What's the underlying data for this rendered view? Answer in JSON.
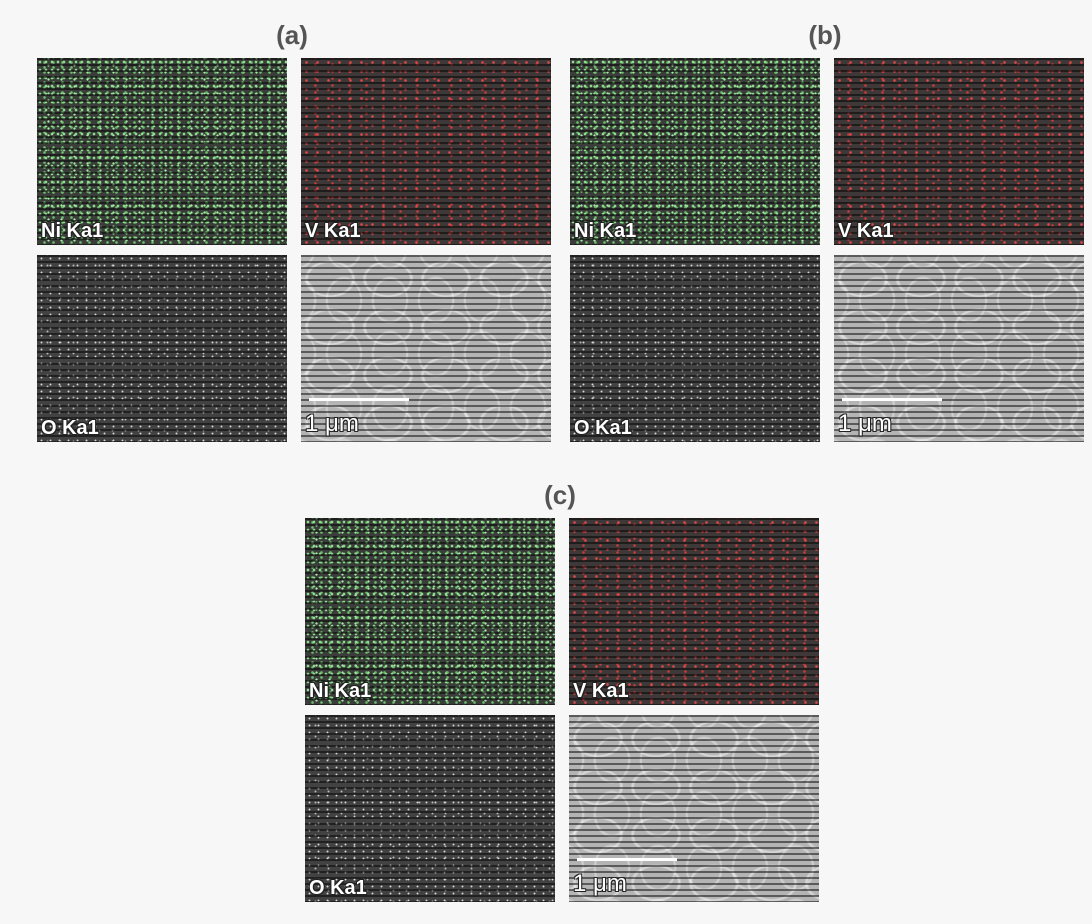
{
  "panels": [
    {
      "label": "(a)",
      "tiles": [
        {
          "label": "Ni Ka1"
        },
        {
          "label": "V Ka1"
        },
        {
          "label": "O Ka1"
        },
        {
          "label": "1 μm"
        }
      ]
    },
    {
      "label": "(b)",
      "tiles": [
        {
          "label": "Ni Ka1"
        },
        {
          "label": "V Ka1"
        },
        {
          "label": "O Ka1"
        },
        {
          "label": "1 μm"
        }
      ]
    },
    {
      "label": "(c)",
      "tiles": [
        {
          "label": "Ni Ka1"
        },
        {
          "label": "V Ka1"
        },
        {
          "label": "O Ka1"
        },
        {
          "label": "1 μm"
        }
      ]
    }
  ]
}
